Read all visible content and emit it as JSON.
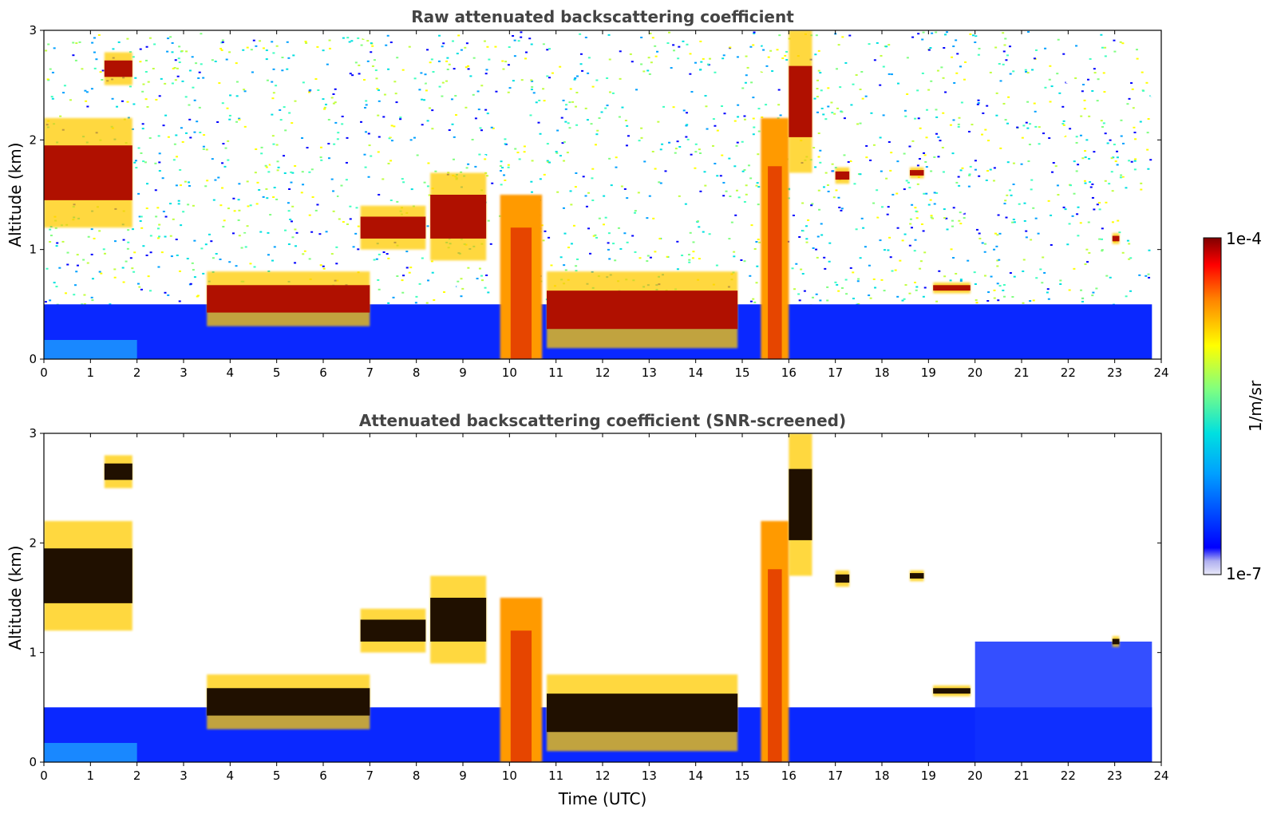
{
  "chart_data": [
    {
      "type": "heatmap",
      "title": "Raw attenuated backscattering coefficient",
      "xlabel": "",
      "ylabel": "Altitude (km)",
      "xlim": [
        0,
        24
      ],
      "ylim": [
        0,
        3
      ],
      "x_ticks": [
        "0",
        "1",
        "2",
        "3",
        "4",
        "5",
        "6",
        "7",
        "8",
        "9",
        "10",
        "11",
        "12",
        "13",
        "14",
        "15",
        "16",
        "17",
        "18",
        "19",
        "20",
        "21",
        "22",
        "23",
        "24"
      ],
      "y_ticks": [
        "0",
        "1",
        "2",
        "3"
      ],
      "scale": "log",
      "background": "noise-filled",
      "features": [
        {
          "kind": "aerosol_layer",
          "t_start": 0,
          "t_end": 23.8,
          "alt_top_km": 0.5
        },
        {
          "kind": "cloud_layer",
          "t_start": 0.0,
          "t_end": 1.9,
          "alt_km": [
            1.2,
            2.2
          ]
        },
        {
          "kind": "cloud_layer",
          "t_start": 1.3,
          "t_end": 1.9,
          "alt_km": [
            2.5,
            2.8
          ]
        },
        {
          "kind": "cloud_layer",
          "t_start": 3.5,
          "t_end": 7.0,
          "alt_km": [
            0.3,
            0.8
          ]
        },
        {
          "kind": "cloud_layer",
          "t_start": 6.8,
          "t_end": 8.2,
          "alt_km": [
            1.0,
            1.4
          ]
        },
        {
          "kind": "cloud_layer",
          "t_start": 8.3,
          "t_end": 9.5,
          "alt_km": [
            0.9,
            1.7
          ]
        },
        {
          "kind": "precipitation",
          "t_start": 9.8,
          "t_end": 10.7,
          "alt_km": [
            0,
            1.5
          ]
        },
        {
          "kind": "cloud_layer",
          "t_start": 10.8,
          "t_end": 14.9,
          "alt_km": [
            0.1,
            0.8
          ]
        },
        {
          "kind": "precipitation",
          "t_start": 15.4,
          "t_end": 16.0,
          "alt_km": [
            0,
            2.2
          ]
        },
        {
          "kind": "cloud_layer",
          "t_start": 16.0,
          "t_end": 16.5,
          "alt_km": [
            1.7,
            3.0
          ]
        },
        {
          "kind": "cloud_layer",
          "t_start": 17.0,
          "t_end": 17.3,
          "alt_km": [
            1.6,
            1.75
          ]
        },
        {
          "kind": "cloud_layer",
          "t_start": 18.6,
          "t_end": 18.9,
          "alt_km": [
            1.65,
            1.75
          ]
        },
        {
          "kind": "cloud_layer",
          "t_start": 19.1,
          "t_end": 19.9,
          "alt_km": [
            0.6,
            0.7
          ]
        },
        {
          "kind": "cloud_layer",
          "t_start": 22.95,
          "t_end": 23.1,
          "alt_km": [
            1.05,
            1.15
          ]
        }
      ]
    },
    {
      "type": "heatmap",
      "title": "Attenuated backscattering coefficient (SNR-screened)",
      "xlabel": "Time (UTC)",
      "ylabel": "Altitude (km)",
      "xlim": [
        0,
        24
      ],
      "ylim": [
        0,
        3
      ],
      "x_ticks": [
        "0",
        "1",
        "2",
        "3",
        "4",
        "5",
        "6",
        "7",
        "8",
        "9",
        "10",
        "11",
        "12",
        "13",
        "14",
        "15",
        "16",
        "17",
        "18",
        "19",
        "20",
        "21",
        "22",
        "23",
        "24"
      ],
      "y_ticks": [
        "0",
        "1",
        "2",
        "3"
      ],
      "scale": "log",
      "background": "white (screened)",
      "features": [
        {
          "kind": "aerosol_layer",
          "t_start": 0,
          "t_end": 23.8,
          "alt_top_km": 0.5
        },
        {
          "kind": "aerosol_layer",
          "t_start": 20.0,
          "t_end": 23.8,
          "alt_top_km": 1.1
        },
        {
          "kind": "cloud_layer",
          "t_start": 0.0,
          "t_end": 1.9,
          "alt_km": [
            1.2,
            2.2
          ]
        },
        {
          "kind": "cloud_layer",
          "t_start": 1.3,
          "t_end": 1.9,
          "alt_km": [
            2.5,
            2.8
          ]
        },
        {
          "kind": "cloud_layer",
          "t_start": 3.5,
          "t_end": 7.0,
          "alt_km": [
            0.3,
            0.8
          ]
        },
        {
          "kind": "cloud_layer",
          "t_start": 6.8,
          "t_end": 8.2,
          "alt_km": [
            1.0,
            1.4
          ]
        },
        {
          "kind": "cloud_layer",
          "t_start": 8.3,
          "t_end": 9.5,
          "alt_km": [
            0.9,
            1.7
          ]
        },
        {
          "kind": "precipitation",
          "t_start": 9.8,
          "t_end": 10.7,
          "alt_km": [
            0,
            1.5
          ]
        },
        {
          "kind": "cloud_layer",
          "t_start": 10.8,
          "t_end": 14.9,
          "alt_km": [
            0.1,
            0.8
          ]
        },
        {
          "kind": "precipitation",
          "t_start": 15.4,
          "t_end": 16.0,
          "alt_km": [
            0,
            2.2
          ]
        },
        {
          "kind": "cloud_layer",
          "t_start": 16.0,
          "t_end": 16.5,
          "alt_km": [
            1.7,
            3.0
          ]
        },
        {
          "kind": "cloud_layer",
          "t_start": 17.0,
          "t_end": 17.3,
          "alt_km": [
            1.6,
            1.75
          ]
        },
        {
          "kind": "cloud_layer",
          "t_start": 18.6,
          "t_end": 18.9,
          "alt_km": [
            1.65,
            1.75
          ]
        },
        {
          "kind": "cloud_layer",
          "t_start": 19.1,
          "t_end": 19.9,
          "alt_km": [
            0.6,
            0.7
          ]
        },
        {
          "kind": "cloud_layer",
          "t_start": 22.95,
          "t_end": 23.1,
          "alt_km": [
            1.05,
            1.15
          ]
        }
      ]
    }
  ],
  "colorbar": {
    "label": "1/m/sr",
    "max_label": "1e-4",
    "min_label": "1e-7",
    "colormap": "jet",
    "colors": [
      "#e8e8f8",
      "#0000ff",
      "#00a0ff",
      "#00e0e0",
      "#80ff80",
      "#ffff00",
      "#ff8000",
      "#ff0000",
      "#800000"
    ]
  }
}
